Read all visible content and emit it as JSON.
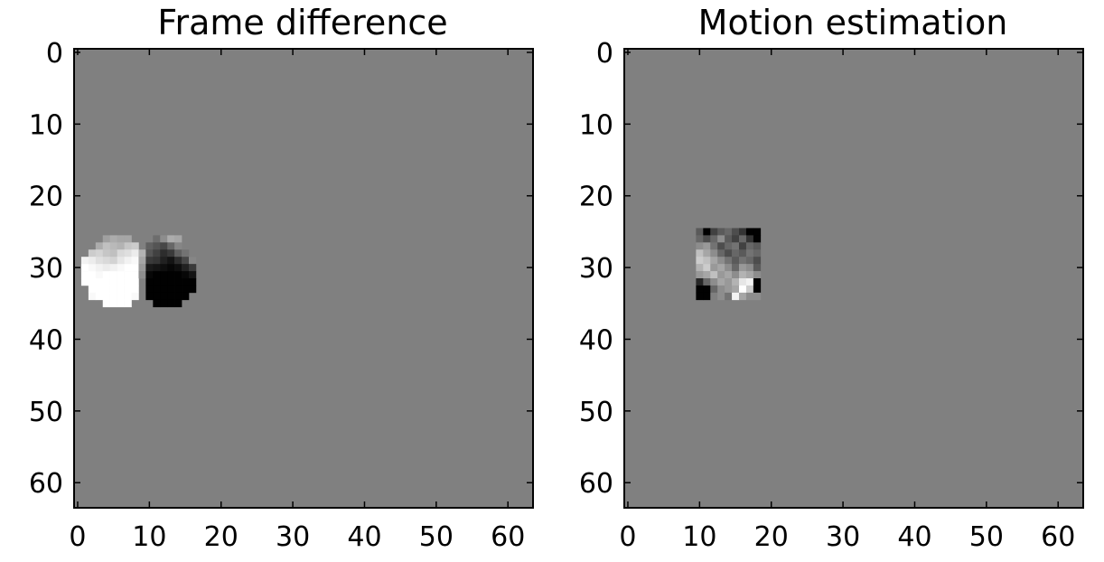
{
  "chart_data": [
    {
      "type": "heatmap",
      "title": "Frame difference",
      "xlabel": "",
      "ylabel": "",
      "colormap": "gray",
      "grid": false,
      "xlim": [
        -0.5,
        63.5
      ],
      "ylim": [
        63.5,
        -0.5
      ],
      "x_ticks": [
        0,
        10,
        20,
        30,
        40,
        50,
        60
      ],
      "y_ticks": [
        0,
        10,
        20,
        30,
        40,
        50,
        60
      ],
      "background_value": 0,
      "nonzero_cells": [
        {
          "x": 4,
          "y": 26,
          "v": 0.25
        },
        {
          "x": 5,
          "y": 26,
          "v": 0.35
        },
        {
          "x": 6,
          "y": 26,
          "v": 0.3
        },
        {
          "x": 7,
          "y": 26,
          "v": 0.3
        },
        {
          "x": 3,
          "y": 27,
          "v": 0.35
        },
        {
          "x": 4,
          "y": 27,
          "v": 0.5
        },
        {
          "x": 5,
          "y": 27,
          "v": 0.45
        },
        {
          "x": 6,
          "y": 27,
          "v": 0.4
        },
        {
          "x": 7,
          "y": 27,
          "v": 0.55
        },
        {
          "x": 8,
          "y": 27,
          "v": 0.6
        },
        {
          "x": 2,
          "y": 28,
          "v": 0.6
        },
        {
          "x": 3,
          "y": 28,
          "v": 0.65
        },
        {
          "x": 4,
          "y": 28,
          "v": 0.55
        },
        {
          "x": 5,
          "y": 28,
          "v": 0.5
        },
        {
          "x": 6,
          "y": 28,
          "v": 0.7
        },
        {
          "x": 7,
          "y": 28,
          "v": 0.75
        },
        {
          "x": 8,
          "y": 28,
          "v": 0.85
        },
        {
          "x": 1,
          "y": 29,
          "v": 0.9
        },
        {
          "x": 2,
          "y": 29,
          "v": 0.85
        },
        {
          "x": 3,
          "y": 29,
          "v": 0.75
        },
        {
          "x": 4,
          "y": 29,
          "v": 0.7
        },
        {
          "x": 5,
          "y": 29,
          "v": 0.65
        },
        {
          "x": 6,
          "y": 29,
          "v": 0.8
        },
        {
          "x": 7,
          "y": 29,
          "v": 0.9
        },
        {
          "x": 8,
          "y": 29,
          "v": 0.95
        },
        {
          "x": 1,
          "y": 30,
          "v": 1.0
        },
        {
          "x": 2,
          "y": 30,
          "v": 0.95
        },
        {
          "x": 3,
          "y": 30,
          "v": 0.9
        },
        {
          "x": 4,
          "y": 30,
          "v": 0.85
        },
        {
          "x": 5,
          "y": 30,
          "v": 0.9
        },
        {
          "x": 6,
          "y": 30,
          "v": 0.95
        },
        {
          "x": 7,
          "y": 30,
          "v": 1.0
        },
        {
          "x": 8,
          "y": 30,
          "v": 1.0
        },
        {
          "x": 1,
          "y": 31,
          "v": 1.0
        },
        {
          "x": 2,
          "y": 31,
          "v": 1.0
        },
        {
          "x": 3,
          "y": 31,
          "v": 0.95
        },
        {
          "x": 4,
          "y": 31,
          "v": 1.0
        },
        {
          "x": 5,
          "y": 31,
          "v": 1.0
        },
        {
          "x": 6,
          "y": 31,
          "v": 1.0
        },
        {
          "x": 7,
          "y": 31,
          "v": 1.0
        },
        {
          "x": 8,
          "y": 31,
          "v": 1.0
        },
        {
          "x": 1,
          "y": 32,
          "v": 1.0
        },
        {
          "x": 2,
          "y": 32,
          "v": 1.0
        },
        {
          "x": 3,
          "y": 32,
          "v": 1.0
        },
        {
          "x": 4,
          "y": 32,
          "v": 1.0
        },
        {
          "x": 5,
          "y": 32,
          "v": 1.0
        },
        {
          "x": 6,
          "y": 32,
          "v": 1.0
        },
        {
          "x": 7,
          "y": 32,
          "v": 1.0
        },
        {
          "x": 8,
          "y": 32,
          "v": 1.0
        },
        {
          "x": 2,
          "y": 33,
          "v": 1.0
        },
        {
          "x": 3,
          "y": 33,
          "v": 1.0
        },
        {
          "x": 4,
          "y": 33,
          "v": 1.0
        },
        {
          "x": 5,
          "y": 33,
          "v": 1.0
        },
        {
          "x": 6,
          "y": 33,
          "v": 1.0
        },
        {
          "x": 7,
          "y": 33,
          "v": 1.0
        },
        {
          "x": 8,
          "y": 33,
          "v": 1.0
        },
        {
          "x": 2,
          "y": 34,
          "v": 0.95
        },
        {
          "x": 3,
          "y": 34,
          "v": 1.0
        },
        {
          "x": 4,
          "y": 34,
          "v": 1.0
        },
        {
          "x": 5,
          "y": 34,
          "v": 1.0
        },
        {
          "x": 6,
          "y": 34,
          "v": 1.0
        },
        {
          "x": 7,
          "y": 34,
          "v": 1.0
        },
        {
          "x": 8,
          "y": 34,
          "v": 0.95
        },
        {
          "x": 4,
          "y": 35,
          "v": 1.0
        },
        {
          "x": 5,
          "y": 35,
          "v": 1.0
        },
        {
          "x": 6,
          "y": 35,
          "v": 1.0
        },
        {
          "x": 7,
          "y": 35,
          "v": 1.0
        },
        {
          "x": 9,
          "y": 28,
          "v": 0.4
        },
        {
          "x": 9,
          "y": 29,
          "v": 0.3
        },
        {
          "x": 9,
          "y": 30,
          "v": 0.2
        },
        {
          "x": 9,
          "y": 31,
          "v": 0.1
        },
        {
          "x": 11,
          "y": 26,
          "v": -0.15
        },
        {
          "x": 12,
          "y": 26,
          "v": 0.1
        },
        {
          "x": 13,
          "y": 26,
          "v": 0.35
        },
        {
          "x": 14,
          "y": 26,
          "v": 0.3
        },
        {
          "x": 10,
          "y": 27,
          "v": -0.25
        },
        {
          "x": 11,
          "y": 27,
          "v": -0.35
        },
        {
          "x": 12,
          "y": 27,
          "v": -0.45
        },
        {
          "x": 13,
          "y": 27,
          "v": -0.2
        },
        {
          "x": 14,
          "y": 27,
          "v": 0.05
        },
        {
          "x": 10,
          "y": 28,
          "v": -0.35
        },
        {
          "x": 11,
          "y": 28,
          "v": -0.5
        },
        {
          "x": 12,
          "y": 28,
          "v": -0.65
        },
        {
          "x": 13,
          "y": 28,
          "v": -0.55
        },
        {
          "x": 14,
          "y": 28,
          "v": -0.25
        },
        {
          "x": 15,
          "y": 28,
          "v": -0.1
        },
        {
          "x": 10,
          "y": 29,
          "v": -0.55
        },
        {
          "x": 11,
          "y": 29,
          "v": -0.6
        },
        {
          "x": 12,
          "y": 29,
          "v": -0.75
        },
        {
          "x": 13,
          "y": 29,
          "v": -0.85
        },
        {
          "x": 14,
          "y": 29,
          "v": -0.65
        },
        {
          "x": 15,
          "y": 29,
          "v": -0.45
        },
        {
          "x": 16,
          "y": 29,
          "v": 0.05
        },
        {
          "x": 10,
          "y": 30,
          "v": -0.8
        },
        {
          "x": 11,
          "y": 30,
          "v": -0.85
        },
        {
          "x": 12,
          "y": 30,
          "v": -0.9
        },
        {
          "x": 13,
          "y": 30,
          "v": -0.95
        },
        {
          "x": 14,
          "y": 30,
          "v": -0.9
        },
        {
          "x": 15,
          "y": 30,
          "v": -0.75
        },
        {
          "x": 16,
          "y": 30,
          "v": -0.55
        },
        {
          "x": 10,
          "y": 31,
          "v": -0.95
        },
        {
          "x": 11,
          "y": 31,
          "v": -1.0
        },
        {
          "x": 12,
          "y": 31,
          "v": -1.0
        },
        {
          "x": 13,
          "y": 31,
          "v": -1.0
        },
        {
          "x": 14,
          "y": 31,
          "v": -1.0
        },
        {
          "x": 15,
          "y": 31,
          "v": -0.95
        },
        {
          "x": 16,
          "y": 31,
          "v": -0.85
        },
        {
          "x": 10,
          "y": 32,
          "v": -1.0
        },
        {
          "x": 11,
          "y": 32,
          "v": -1.0
        },
        {
          "x": 12,
          "y": 32,
          "v": -1.0
        },
        {
          "x": 13,
          "y": 32,
          "v": -1.0
        },
        {
          "x": 14,
          "y": 32,
          "v": -1.0
        },
        {
          "x": 15,
          "y": 32,
          "v": -1.0
        },
        {
          "x": 16,
          "y": 32,
          "v": -1.0
        },
        {
          "x": 10,
          "y": 33,
          "v": -1.0
        },
        {
          "x": 11,
          "y": 33,
          "v": -1.0
        },
        {
          "x": 12,
          "y": 33,
          "v": -1.0
        },
        {
          "x": 13,
          "y": 33,
          "v": -1.0
        },
        {
          "x": 14,
          "y": 33,
          "v": -1.0
        },
        {
          "x": 15,
          "y": 33,
          "v": -1.0
        },
        {
          "x": 16,
          "y": 33,
          "v": -1.0
        },
        {
          "x": 10,
          "y": 34,
          "v": -1.0
        },
        {
          "x": 11,
          "y": 34,
          "v": -1.0
        },
        {
          "x": 12,
          "y": 34,
          "v": -1.0
        },
        {
          "x": 13,
          "y": 34,
          "v": -1.0
        },
        {
          "x": 14,
          "y": 34,
          "v": -1.0
        },
        {
          "x": 15,
          "y": 34,
          "v": -1.0
        },
        {
          "x": 11,
          "y": 35,
          "v": -1.0
        },
        {
          "x": 12,
          "y": 35,
          "v": -1.0
        },
        {
          "x": 13,
          "y": 35,
          "v": -1.0
        },
        {
          "x": 14,
          "y": 35,
          "v": -1.0
        }
      ]
    },
    {
      "type": "heatmap",
      "title": "Motion estimation",
      "xlabel": "",
      "ylabel": "",
      "colormap": "gray",
      "grid": false,
      "xlim": [
        -0.5,
        63.5
      ],
      "ylim": [
        63.5,
        -0.5
      ],
      "x_ticks": [
        0,
        10,
        20,
        30,
        40,
        50,
        60
      ],
      "y_ticks": [
        0,
        10,
        20,
        30,
        40,
        50,
        60
      ],
      "background_value": 0,
      "nonzero_cells": [
        {
          "x": 10,
          "y": 25,
          "v": -0.3
        },
        {
          "x": 11,
          "y": 25,
          "v": -1.0
        },
        {
          "x": 12,
          "y": 25,
          "v": -0.5
        },
        {
          "x": 13,
          "y": 25,
          "v": -0.3
        },
        {
          "x": 14,
          "y": 25,
          "v": -0.2
        },
        {
          "x": 15,
          "y": 25,
          "v": -0.4
        },
        {
          "x": 16,
          "y": 25,
          "v": -0.6
        },
        {
          "x": 17,
          "y": 25,
          "v": -1.0
        },
        {
          "x": 18,
          "y": 25,
          "v": -1.0
        },
        {
          "x": 10,
          "y": 26,
          "v": -0.2
        },
        {
          "x": 11,
          "y": 26,
          "v": -0.4
        },
        {
          "x": 12,
          "y": 26,
          "v": -0.2
        },
        {
          "x": 13,
          "y": 26,
          "v": 0.1
        },
        {
          "x": 14,
          "y": 26,
          "v": -0.3
        },
        {
          "x": 15,
          "y": 26,
          "v": -0.5
        },
        {
          "x": 16,
          "y": 26,
          "v": -0.2
        },
        {
          "x": 17,
          "y": 26,
          "v": -0.6
        },
        {
          "x": 18,
          "y": 26,
          "v": -1.0
        },
        {
          "x": 10,
          "y": 27,
          "v": 0.1
        },
        {
          "x": 11,
          "y": 27,
          "v": 0.2
        },
        {
          "x": 12,
          "y": 27,
          "v": -0.1
        },
        {
          "x": 13,
          "y": 27,
          "v": -0.4
        },
        {
          "x": 14,
          "y": 27,
          "v": -0.2
        },
        {
          "x": 15,
          "y": 27,
          "v": -0.1
        },
        {
          "x": 16,
          "y": 27,
          "v": -0.5
        },
        {
          "x": 17,
          "y": 27,
          "v": -0.2
        },
        {
          "x": 18,
          "y": 27,
          "v": -0.3
        },
        {
          "x": 10,
          "y": 28,
          "v": 0.5
        },
        {
          "x": 11,
          "y": 28,
          "v": 0.3
        },
        {
          "x": 12,
          "y": 28,
          "v": 0.1
        },
        {
          "x": 13,
          "y": 28,
          "v": -0.2
        },
        {
          "x": 14,
          "y": 28,
          "v": -0.4
        },
        {
          "x": 15,
          "y": 28,
          "v": -0.2
        },
        {
          "x": 16,
          "y": 28,
          "v": -0.3
        },
        {
          "x": 17,
          "y": 28,
          "v": -0.1
        },
        {
          "x": 18,
          "y": 28,
          "v": -0.2
        },
        {
          "x": 10,
          "y": 29,
          "v": 0.6
        },
        {
          "x": 11,
          "y": 29,
          "v": 0.5
        },
        {
          "x": 12,
          "y": 29,
          "v": 0.3
        },
        {
          "x": 13,
          "y": 29,
          "v": 0.1
        },
        {
          "x": 14,
          "y": 29,
          "v": -0.1
        },
        {
          "x": 15,
          "y": 29,
          "v": -0.3
        },
        {
          "x": 16,
          "y": 29,
          "v": -0.1
        },
        {
          "x": 17,
          "y": 29,
          "v": -0.2
        },
        {
          "x": 18,
          "y": 29,
          "v": -0.4
        },
        {
          "x": 10,
          "y": 30,
          "v": 0.4
        },
        {
          "x": 11,
          "y": 30,
          "v": 0.6
        },
        {
          "x": 12,
          "y": 30,
          "v": 0.2
        },
        {
          "x": 13,
          "y": 30,
          "v": 0.3
        },
        {
          "x": 14,
          "y": 30,
          "v": 0.1
        },
        {
          "x": 15,
          "y": 30,
          "v": -0.2
        },
        {
          "x": 16,
          "y": 30,
          "v": 0.2
        },
        {
          "x": 17,
          "y": 30,
          "v": 0.1
        },
        {
          "x": 18,
          "y": 30,
          "v": -0.3
        },
        {
          "x": 10,
          "y": 31,
          "v": 0.2
        },
        {
          "x": 11,
          "y": 31,
          "v": 0.3
        },
        {
          "x": 12,
          "y": 31,
          "v": 0.5
        },
        {
          "x": 13,
          "y": 31,
          "v": 0.2
        },
        {
          "x": 14,
          "y": 31,
          "v": 0.3
        },
        {
          "x": 15,
          "y": 31,
          "v": 0.1
        },
        {
          "x": 16,
          "y": 31,
          "v": 0.4
        },
        {
          "x": 17,
          "y": 31,
          "v": 0.3
        },
        {
          "x": 18,
          "y": 31,
          "v": 0.1
        },
        {
          "x": 10,
          "y": 32,
          "v": -0.7
        },
        {
          "x": 11,
          "y": 32,
          "v": -0.2
        },
        {
          "x": 12,
          "y": 32,
          "v": 0.1
        },
        {
          "x": 13,
          "y": 32,
          "v": 0.3
        },
        {
          "x": 14,
          "y": 32,
          "v": 0.2
        },
        {
          "x": 15,
          "y": 32,
          "v": 0.4
        },
        {
          "x": 16,
          "y": 32,
          "v": 0.8
        },
        {
          "x": 17,
          "y": 32,
          "v": 0.9
        },
        {
          "x": 18,
          "y": 32,
          "v": -1.0
        },
        {
          "x": 10,
          "y": 33,
          "v": -1.0
        },
        {
          "x": 11,
          "y": 33,
          "v": -1.0
        },
        {
          "x": 12,
          "y": 33,
          "v": -0.2
        },
        {
          "x": 13,
          "y": 33,
          "v": 0.1
        },
        {
          "x": 14,
          "y": 33,
          "v": 0.2
        },
        {
          "x": 15,
          "y": 33,
          "v": 0.3
        },
        {
          "x": 16,
          "y": 33,
          "v": 1.0
        },
        {
          "x": 17,
          "y": 33,
          "v": 0.6
        },
        {
          "x": 18,
          "y": 33,
          "v": -1.0
        },
        {
          "x": 10,
          "y": 34,
          "v": -1.0
        },
        {
          "x": 11,
          "y": 34,
          "v": -1.0
        },
        {
          "x": 12,
          "y": 34,
          "v": 0.0
        },
        {
          "x": 13,
          "y": 34,
          "v": 0.1
        },
        {
          "x": 14,
          "y": 34,
          "v": -0.1
        },
        {
          "x": 15,
          "y": 34,
          "v": 0.9
        },
        {
          "x": 16,
          "y": 34,
          "v": 0.3
        },
        {
          "x": 17,
          "y": 34,
          "v": 0.1
        },
        {
          "x": 18,
          "y": 34,
          "v": 0.1
        }
      ]
    }
  ]
}
